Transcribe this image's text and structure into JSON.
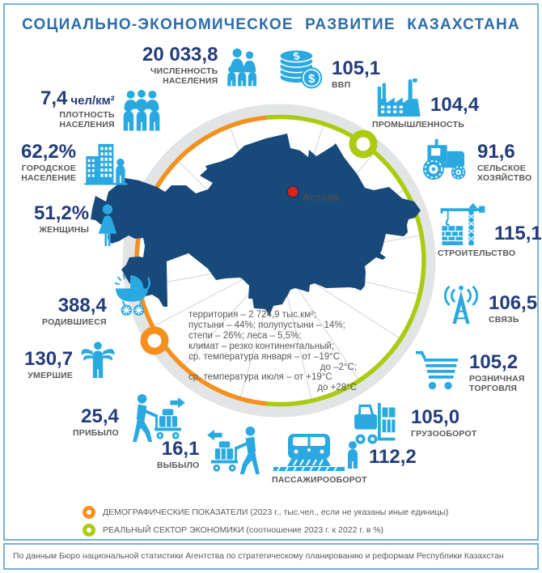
{
  "title": "СОЦИАЛЬНО-ЭКОНОМИЧЕСКОЕ РАЗВИТИЕ КАЗАХСТАНА",
  "colors": {
    "accent_blue": "#2AA9E1",
    "number_navy": "#233C7B",
    "map_navy": "#17497B",
    "demographic_orange": "#F4911E",
    "economy_green": "#ABCB12",
    "label_gray": "#58595B",
    "capital_dot_red": "#E0211A"
  },
  "map": {
    "capital_label": "Астана",
    "capital_marker": "red-dot"
  },
  "center_facts": [
    "территория – 2 724,9 тыс.км²;",
    "пустыни – 44%; полупустыни – 14%;",
    "степи – 26%; леса – 5,5%;",
    "климат – резко континентальный;",
    "ср. температура января – от –19°С",
    "до –2°С;",
    "ср. температура июля – от +19°С",
    "до +28°С"
  ],
  "stats": {
    "population": {
      "value": "20 033,8",
      "label": "ЧИСЛЕННОСТЬ\nНАСЕЛЕНИЯ",
      "icon": "family-icon",
      "group": "demographic"
    },
    "density": {
      "value": "7,4",
      "unit": "чел/км²",
      "label": "ПЛОТНОСТЬ\nНАСЕЛЕНИЯ",
      "icon": "crowd-icon",
      "group": "demographic"
    },
    "urban": {
      "value": "62,2%",
      "label": "ГОРОДСКОЕ\nНАСЕЛЕНИЕ",
      "icon": "city-icon",
      "group": "demographic"
    },
    "women": {
      "value": "51,2%",
      "label": "ЖЕНЩИНЫ",
      "icon": "woman-icon",
      "group": "demographic"
    },
    "births": {
      "value": "388,4",
      "label": "РОДИВШИЕСЯ",
      "icon": "pram-icon",
      "group": "demographic"
    },
    "deaths": {
      "value": "130,7",
      "label": "УМЕРШИЕ",
      "icon": "angel-icon",
      "group": "demographic"
    },
    "arrived": {
      "value": "25,4",
      "label": "ПРИБЫЛО",
      "icon": "arrival-cart-icon",
      "group": "demographic"
    },
    "departed": {
      "value": "16,1",
      "label": "ВЫБЫЛО",
      "icon": "departure-cart-icon",
      "group": "demographic"
    },
    "gdp": {
      "value": "105,1",
      "label": "ВВП",
      "icon": "coins-icon",
      "group": "economy"
    },
    "industry": {
      "value": "104,4",
      "label": "ПРОМЫШЛЕННОСТЬ",
      "icon": "factory-icon",
      "group": "economy"
    },
    "agriculture": {
      "value": "91,6",
      "label": "СЕЛЬСКОЕ\nХОЗЯЙСТВО",
      "icon": "tractor-icon",
      "group": "economy"
    },
    "construction": {
      "value": "115,1",
      "label": "СТРОИТЕЛЬСТВО",
      "icon": "crane-icon",
      "group": "economy"
    },
    "communications": {
      "value": "106,5",
      "label": "СВЯЗЬ",
      "icon": "radio-tower-icon",
      "group": "economy"
    },
    "retail": {
      "value": "105,2",
      "label": "РОЗНИЧНАЯ\nТОРГОВЛЯ",
      "icon": "shopping-cart-icon",
      "group": "economy"
    },
    "freight": {
      "value": "105,0",
      "label": "ГРУЗООБОРОТ",
      "icon": "forklift-icon",
      "group": "economy"
    },
    "passenger": {
      "value": "112,2",
      "label": "ПАССАЖИРООБОРОТ",
      "icon": "train-icon",
      "group": "economy"
    }
  },
  "legend": [
    {
      "marker": "orange-ring",
      "text": "ДЕМОГРАФИЧЕСКИЕ ПОКАЗАТЕЛИ (2023 г., тыс.чел., если не указаны иные единицы)"
    },
    {
      "marker": "green-ring",
      "text": "РЕАЛЬНЫЙ СЕКТОР ЭКОНОМИКИ (соотношение 2023 г. к 2022 г. в %)"
    }
  ],
  "footer": "По данным Бюро национальной статистики Агентства по стратегическому планированию и реформам Республики Казахстан"
}
